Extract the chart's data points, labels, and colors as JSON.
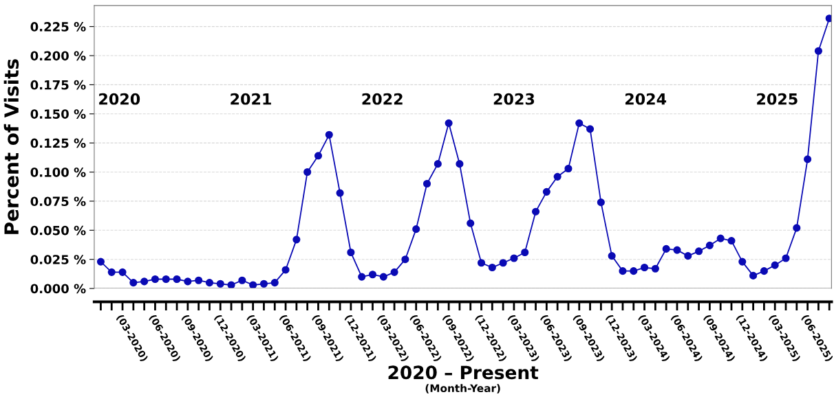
{
  "chart_data": {
    "type": "line",
    "ylabel": "Percent of Visits",
    "xlabel": "2020 – Present",
    "subtitle": "(Month-Year)",
    "categories": [
      null,
      null,
      "(03-2020)",
      null,
      null,
      "(06-2020)",
      null,
      null,
      "(09-2020)",
      null,
      null,
      "(12-2020)",
      null,
      null,
      "(03-2021)",
      null,
      null,
      "(06-2021)",
      null,
      null,
      "(09-2021)",
      null,
      null,
      "(12-2021)",
      null,
      null,
      "(03-2022)",
      null,
      null,
      "(06-2022)",
      null,
      null,
      "(09-2022)",
      null,
      null,
      "(12-2022)",
      null,
      null,
      "(03-2023)",
      null,
      null,
      "(06-2023)",
      null,
      null,
      "(09-2023)",
      null,
      null,
      "(12-2023)",
      null,
      null,
      "(03-2024)",
      null,
      null,
      "(06-2024)",
      null,
      null,
      "(09-2024)",
      null,
      null,
      "(12-2024)",
      null,
      null,
      "(03-2025)",
      null,
      null,
      "(06-2025)",
      null,
      null
    ],
    "series": [
      {
        "color": "#0a0ab4",
        "values": [
          0.023,
          0.014,
          0.014,
          0.005,
          0.006,
          0.008,
          0.008,
          0.008,
          0.006,
          0.007,
          0.005,
          0.004,
          0.003,
          0.007,
          0.003,
          0.004,
          0.005,
          0.016,
          0.042,
          0.1,
          0.114,
          0.132,
          0.082,
          0.031,
          0.01,
          0.012,
          0.01,
          0.014,
          0.025,
          0.051,
          0.09,
          0.107,
          0.142,
          0.107,
          0.056,
          0.022,
          0.018,
          0.022,
          0.026,
          0.031,
          0.066,
          0.083,
          0.096,
          0.103,
          0.142,
          0.137,
          0.074,
          0.028,
          0.015,
          0.015,
          0.018,
          0.017,
          0.034,
          0.033,
          0.028,
          0.032,
          0.037,
          0.043,
          0.041,
          0.023,
          0.011,
          0.015,
          0.02,
          0.026,
          0.052,
          0.111,
          0.204,
          0.232
        ]
      }
    ],
    "ylim": [
      0,
      0.243
    ],
    "yticks": [
      {
        "value": 0,
        "label": "0.000 %"
      },
      {
        "value": 0.025,
        "label": "0.025 %"
      },
      {
        "value": 0.05,
        "label": "0.050 %"
      },
      {
        "value": 0.075,
        "label": "0.075 %"
      },
      {
        "value": 0.1,
        "label": "0.100 %"
      },
      {
        "value": 0.125,
        "label": "0.125 %"
      },
      {
        "value": 0.15,
        "label": "0.150 %"
      },
      {
        "value": 0.175,
        "label": "0.175 %"
      },
      {
        "value": 0.2,
        "label": "0.200 %"
      },
      {
        "value": 0.225,
        "label": "0.225 %"
      }
    ],
    "annotations": [
      "2020",
      "2021",
      "2022",
      "2023",
      "2024",
      "2025"
    ],
    "grid": "y",
    "marker": "circle",
    "line_style": "solid"
  }
}
